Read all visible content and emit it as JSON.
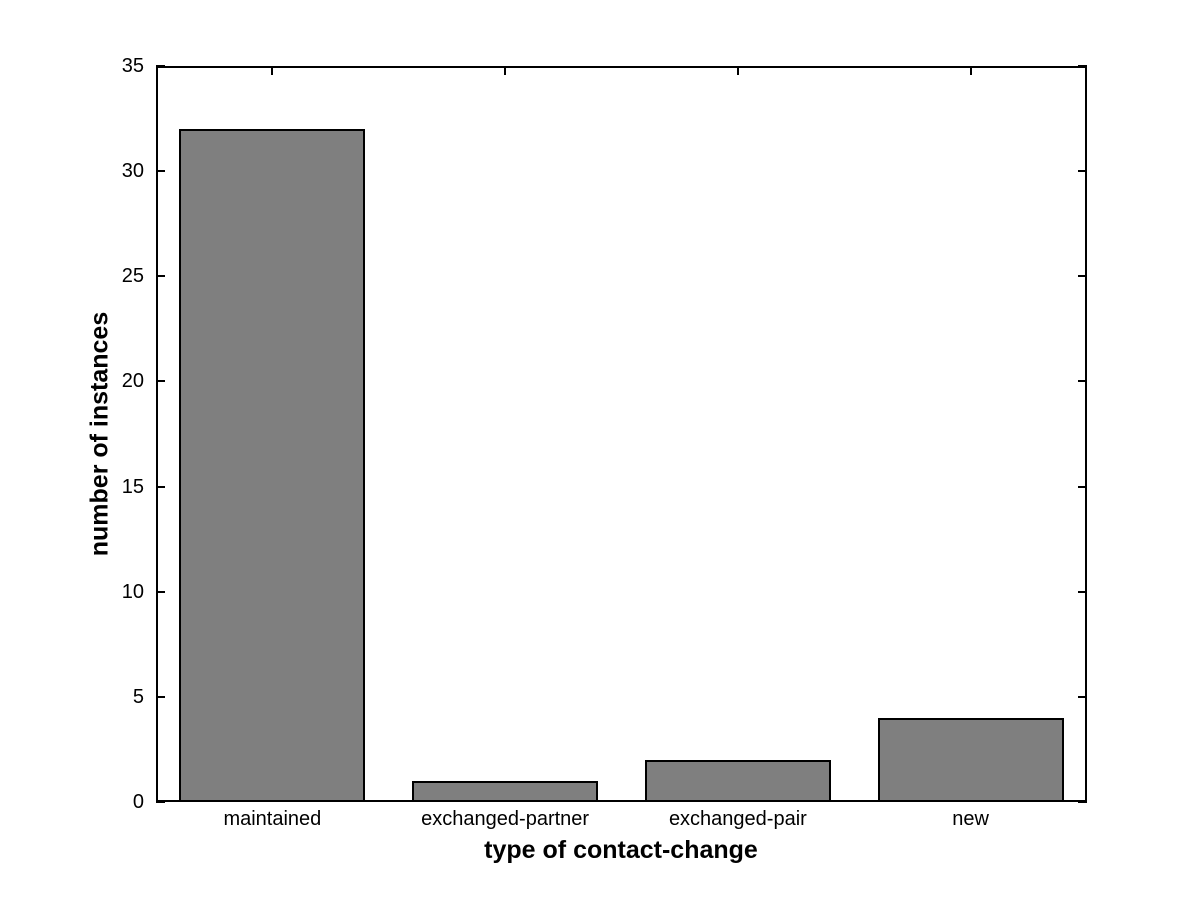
{
  "chart_data": {
    "type": "bar",
    "title": "",
    "categories": [
      "maintained",
      "exchanged-partner",
      "exchanged-pair",
      "new"
    ],
    "values": [
      32,
      1,
      2,
      4
    ],
    "xlabel": "type of contact-change",
    "ylabel": "number of instances",
    "ylim": [
      0,
      35
    ],
    "yticks": [
      0,
      5,
      10,
      15,
      20,
      25,
      30,
      35
    ],
    "bar_color": "#7f7f7f",
    "bar_edge_color": "#000000",
    "axis_color": "#000000",
    "background_color": "#ffffff",
    "bar_width_fraction": 0.8,
    "grid": false,
    "legend_position": "none"
  }
}
